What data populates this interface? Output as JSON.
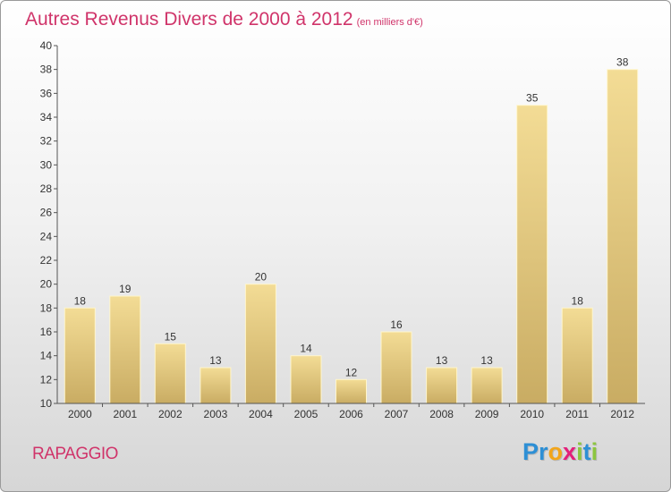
{
  "chart_data": {
    "type": "bar",
    "title": "Autres Revenus Divers de 2000 à 2012",
    "unit": "(en milliers d'€)",
    "categories": [
      "2000",
      "2001",
      "2002",
      "2003",
      "2004",
      "2005",
      "2006",
      "2007",
      "2008",
      "2009",
      "2010",
      "2011",
      "2012"
    ],
    "values": [
      18,
      19,
      15,
      13,
      20,
      14,
      12,
      16,
      13,
      13,
      35,
      18,
      38
    ],
    "ylim": [
      10,
      40
    ],
    "yticks": [
      10,
      12,
      14,
      16,
      18,
      20,
      22,
      24,
      26,
      28,
      30,
      32,
      34,
      36,
      38,
      40
    ],
    "xlabel": "",
    "ylabel": "",
    "grid": false,
    "colors": {
      "bar_light": "#f3dc95",
      "bar_dark": "#c9ac63",
      "bar_edge": "#fff6cc",
      "title": "#d0346a",
      "axis": "#555555"
    }
  },
  "footer": {
    "commune": "RAPAGGIO",
    "logo": {
      "letters": [
        {
          "ch": "P",
          "color": "#2d8fd5"
        },
        {
          "ch": "r",
          "color": "#2d8fd5"
        },
        {
          "ch": "o",
          "color": "#f2a51a"
        },
        {
          "ch": "x",
          "color": "#e3207a"
        },
        {
          "ch": "i",
          "color": "#8cc63f"
        },
        {
          "ch": "t",
          "color": "#2d8fd5"
        },
        {
          "ch": "i",
          "color": "#8cc63f"
        }
      ]
    }
  }
}
